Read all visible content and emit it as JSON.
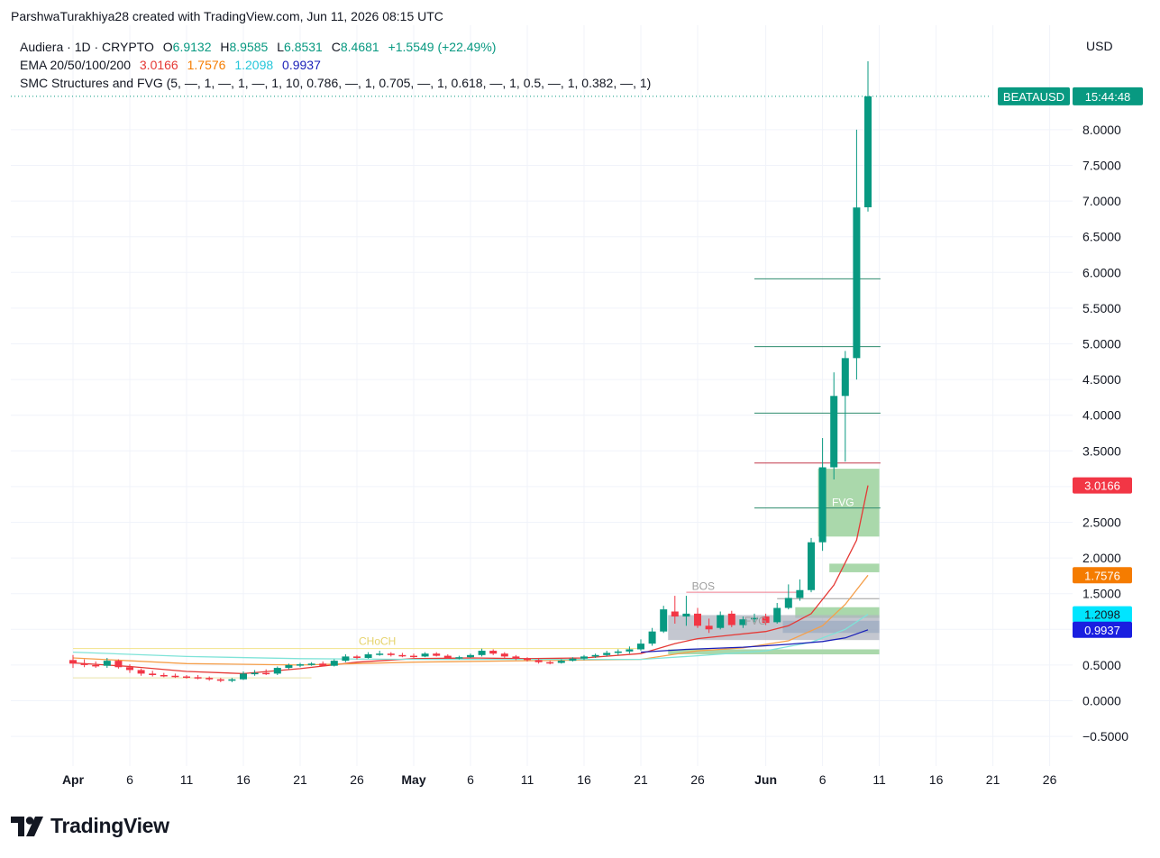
{
  "header": {
    "credit": "ParshwaTurakhiya28 created with TradingView.com, Jun 11, 2026 08:15 UTC",
    "currency": "USD"
  },
  "legend": {
    "symbol_line": "Audiera · 1D · CRYPTO",
    "o_label": "O",
    "o_value": "6.9132",
    "h_label": "H",
    "h_value": "8.9585",
    "l_label": "L",
    "l_value": "6.8531",
    "c_label": "C",
    "c_value": "8.4681",
    "change": "+1.5549 (+22.49%)",
    "ema_label": "EMA 20/50/100/200",
    "ema20": "3.0166",
    "ema50": "1.7576",
    "ema100": "1.2098",
    "ema200": "0.9937",
    "smc_label": "SMC Structures and FVG (5, —, 1, —, 1, —, 1, 10, 0.786, —, 1, 0.705, —, 1, 0.618, —, 1, 0.5, —, 1, 0.382, —, 1)"
  },
  "logo": {
    "text": "TradingView"
  },
  "colors": {
    "up": "#089981",
    "down": "#f23645",
    "ema20": "#e53935",
    "ema50": "#f59f4a",
    "ema100": "#7fe3d8",
    "ema200": "#1a1fb8",
    "fvg": "#a5d6a7",
    "grid": "#f0f3fa"
  },
  "chart_data": {
    "type": "candlestick",
    "symbol": "BEATAUSD",
    "countdown": "15:44:48",
    "y_ticks": [
      "8.0000",
      "7.5000",
      "7.0000",
      "6.5000",
      "6.0000",
      "5.5000",
      "5.0000",
      "4.5000",
      "4.0000",
      "3.5000",
      "3.0000",
      "2.5000",
      "2.0000",
      "1.5000",
      "1.0000",
      "0.5000",
      "0.0000",
      "−0.5000"
    ],
    "y_values": [
      8,
      7.5,
      7,
      6.5,
      6,
      5.5,
      5,
      4.5,
      4,
      3.5,
      3,
      2.5,
      2,
      1.5,
      1,
      0.5,
      0,
      -0.5
    ],
    "ylim": [
      -0.85,
      9.2
    ],
    "x_ticks": [
      {
        "label": "Apr",
        "day": 1,
        "bold": true
      },
      {
        "label": "6",
        "day": 6
      },
      {
        "label": "11",
        "day": 11
      },
      {
        "label": "16",
        "day": 16
      },
      {
        "label": "21",
        "day": 21
      },
      {
        "label": "26",
        "day": 26
      },
      {
        "label": "May",
        "day": 31,
        "bold": true
      },
      {
        "label": "6",
        "day": 36
      },
      {
        "label": "11",
        "day": 41
      },
      {
        "label": "16",
        "day": 46
      },
      {
        "label": "21",
        "day": 51
      },
      {
        "label": "26",
        "day": 56
      },
      {
        "label": "Jun",
        "day": 62,
        "bold": true
      },
      {
        "label": "6",
        "day": 67
      },
      {
        "label": "11",
        "day": 72
      },
      {
        "label": "16",
        "day": 77
      },
      {
        "label": "21",
        "day": 82
      },
      {
        "label": "26",
        "day": 87
      }
    ],
    "price_tags": [
      {
        "label": "3.0166",
        "value": 3.0166,
        "color": "#f23645"
      },
      {
        "label": "1.7576",
        "value": 1.7576,
        "color": "#f57c00"
      },
      {
        "label": "1.2098",
        "value": 1.2098,
        "color": "#00e5ff",
        "text_color": "#131722"
      },
      {
        "label": "0.9937",
        "value": 0.9937,
        "color": "#1a1fe0"
      }
    ],
    "current_price": 8.4681,
    "annotations": [
      {
        "text": "BOS",
        "x": 56.5,
        "y": 1.55,
        "color": "#9e9e9e"
      },
      {
        "text": "FVG",
        "x": 68.8,
        "y": 2.73,
        "color": "#ffffff"
      },
      {
        "text": "FVG",
        "x": 61.1,
        "y": 1.07,
        "color": "#9e9e9e"
      },
      {
        "text": "CHoCH",
        "x": 27.8,
        "y": 0.78,
        "color": "#e6d36b"
      }
    ],
    "candles": [
      {
        "d": 1,
        "o": 0.57,
        "h": 0.64,
        "l": 0.46,
        "c": 0.52
      },
      {
        "d": 2,
        "o": 0.52,
        "h": 0.58,
        "l": 0.47,
        "c": 0.5
      },
      {
        "d": 3,
        "o": 0.5,
        "h": 0.55,
        "l": 0.46,
        "c": 0.49
      },
      {
        "d": 4,
        "o": 0.49,
        "h": 0.6,
        "l": 0.46,
        "c": 0.56
      },
      {
        "d": 5,
        "o": 0.56,
        "h": 0.58,
        "l": 0.45,
        "c": 0.47
      },
      {
        "d": 6,
        "o": 0.47,
        "h": 0.51,
        "l": 0.39,
        "c": 0.43
      },
      {
        "d": 7,
        "o": 0.43,
        "h": 0.45,
        "l": 0.35,
        "c": 0.38
      },
      {
        "d": 8,
        "o": 0.38,
        "h": 0.42,
        "l": 0.34,
        "c": 0.36
      },
      {
        "d": 9,
        "o": 0.36,
        "h": 0.39,
        "l": 0.33,
        "c": 0.35
      },
      {
        "d": 10,
        "o": 0.35,
        "h": 0.38,
        "l": 0.32,
        "c": 0.34
      },
      {
        "d": 11,
        "o": 0.34,
        "h": 0.36,
        "l": 0.31,
        "c": 0.33
      },
      {
        "d": 12,
        "o": 0.33,
        "h": 0.36,
        "l": 0.3,
        "c": 0.32
      },
      {
        "d": 13,
        "o": 0.32,
        "h": 0.34,
        "l": 0.28,
        "c": 0.3
      },
      {
        "d": 14,
        "o": 0.3,
        "h": 0.32,
        "l": 0.26,
        "c": 0.28
      },
      {
        "d": 15,
        "o": 0.28,
        "h": 0.32,
        "l": 0.26,
        "c": 0.3
      },
      {
        "d": 16,
        "o": 0.3,
        "h": 0.41,
        "l": 0.29,
        "c": 0.38
      },
      {
        "d": 17,
        "o": 0.38,
        "h": 0.43,
        "l": 0.35,
        "c": 0.39
      },
      {
        "d": 18,
        "o": 0.39,
        "h": 0.44,
        "l": 0.36,
        "c": 0.38
      },
      {
        "d": 19,
        "o": 0.38,
        "h": 0.48,
        "l": 0.36,
        "c": 0.46
      },
      {
        "d": 20,
        "o": 0.46,
        "h": 0.52,
        "l": 0.44,
        "c": 0.5
      },
      {
        "d": 21,
        "o": 0.5,
        "h": 0.53,
        "l": 0.47,
        "c": 0.51
      },
      {
        "d": 22,
        "o": 0.51,
        "h": 0.54,
        "l": 0.49,
        "c": 0.52
      },
      {
        "d": 23,
        "o": 0.52,
        "h": 0.55,
        "l": 0.48,
        "c": 0.49
      },
      {
        "d": 24,
        "o": 0.49,
        "h": 0.58,
        "l": 0.48,
        "c": 0.56
      },
      {
        "d": 25,
        "o": 0.56,
        "h": 0.65,
        "l": 0.54,
        "c": 0.62
      },
      {
        "d": 26,
        "o": 0.62,
        "h": 0.64,
        "l": 0.58,
        "c": 0.6
      },
      {
        "d": 27,
        "o": 0.6,
        "h": 0.68,
        "l": 0.59,
        "c": 0.65
      },
      {
        "d": 28,
        "o": 0.65,
        "h": 0.7,
        "l": 0.63,
        "c": 0.66
      },
      {
        "d": 29,
        "o": 0.66,
        "h": 0.68,
        "l": 0.62,
        "c": 0.64
      },
      {
        "d": 30,
        "o": 0.64,
        "h": 0.67,
        "l": 0.61,
        "c": 0.63
      },
      {
        "d": 31,
        "o": 0.63,
        "h": 0.66,
        "l": 0.6,
        "c": 0.62
      },
      {
        "d": 32,
        "o": 0.62,
        "h": 0.68,
        "l": 0.61,
        "c": 0.66
      },
      {
        "d": 33,
        "o": 0.66,
        "h": 0.68,
        "l": 0.62,
        "c": 0.63
      },
      {
        "d": 34,
        "o": 0.63,
        "h": 0.65,
        "l": 0.59,
        "c": 0.6
      },
      {
        "d": 35,
        "o": 0.6,
        "h": 0.63,
        "l": 0.58,
        "c": 0.61
      },
      {
        "d": 36,
        "o": 0.61,
        "h": 0.66,
        "l": 0.6,
        "c": 0.64
      },
      {
        "d": 37,
        "o": 0.64,
        "h": 0.73,
        "l": 0.62,
        "c": 0.7
      },
      {
        "d": 38,
        "o": 0.7,
        "h": 0.72,
        "l": 0.64,
        "c": 0.66
      },
      {
        "d": 39,
        "o": 0.66,
        "h": 0.68,
        "l": 0.6,
        "c": 0.62
      },
      {
        "d": 40,
        "o": 0.62,
        "h": 0.64,
        "l": 0.57,
        "c": 0.59
      },
      {
        "d": 41,
        "o": 0.59,
        "h": 0.61,
        "l": 0.55,
        "c": 0.57
      },
      {
        "d": 42,
        "o": 0.57,
        "h": 0.6,
        "l": 0.52,
        "c": 0.54
      },
      {
        "d": 43,
        "o": 0.54,
        "h": 0.56,
        "l": 0.51,
        "c": 0.53
      },
      {
        "d": 44,
        "o": 0.53,
        "h": 0.58,
        "l": 0.52,
        "c": 0.56
      },
      {
        "d": 45,
        "o": 0.56,
        "h": 0.61,
        "l": 0.55,
        "c": 0.59
      },
      {
        "d": 46,
        "o": 0.59,
        "h": 0.64,
        "l": 0.57,
        "c": 0.62
      },
      {
        "d": 47,
        "o": 0.62,
        "h": 0.66,
        "l": 0.6,
        "c": 0.64
      },
      {
        "d": 48,
        "o": 0.64,
        "h": 0.7,
        "l": 0.62,
        "c": 0.67
      },
      {
        "d": 49,
        "o": 0.67,
        "h": 0.72,
        "l": 0.64,
        "c": 0.69
      },
      {
        "d": 50,
        "o": 0.69,
        "h": 0.76,
        "l": 0.66,
        "c": 0.72
      },
      {
        "d": 51,
        "o": 0.72,
        "h": 0.86,
        "l": 0.7,
        "c": 0.8
      },
      {
        "d": 52,
        "o": 0.8,
        "h": 1.02,
        "l": 0.77,
        "c": 0.97
      },
      {
        "d": 53,
        "o": 0.97,
        "h": 1.33,
        "l": 0.95,
        "c": 1.28
      },
      {
        "d": 54,
        "o": 1.25,
        "h": 1.47,
        "l": 1.08,
        "c": 1.18
      },
      {
        "d": 55,
        "o": 1.18,
        "h": 1.47,
        "l": 1.05,
        "c": 1.22
      },
      {
        "d": 56,
        "o": 1.22,
        "h": 1.3,
        "l": 1.02,
        "c": 1.05
      },
      {
        "d": 57,
        "o": 1.05,
        "h": 1.15,
        "l": 0.95,
        "c": 1.0
      },
      {
        "d": 58,
        "o": 1.02,
        "h": 1.25,
        "l": 1.0,
        "c": 1.2
      },
      {
        "d": 59,
        "o": 1.22,
        "h": 1.26,
        "l": 1.03,
        "c": 1.06
      },
      {
        "d": 60,
        "o": 1.06,
        "h": 1.18,
        "l": 1.02,
        "c": 1.14
      },
      {
        "d": 61,
        "o": 1.14,
        "h": 1.22,
        "l": 1.1,
        "c": 1.16
      },
      {
        "d": 62,
        "o": 1.18,
        "h": 1.22,
        "l": 1.06,
        "c": 1.09
      },
      {
        "d": 63,
        "o": 1.1,
        "h": 1.37,
        "l": 1.08,
        "c": 1.3
      },
      {
        "d": 64,
        "o": 1.3,
        "h": 1.63,
        "l": 1.28,
        "c": 1.44
      },
      {
        "d": 65,
        "o": 1.44,
        "h": 1.7,
        "l": 1.4,
        "c": 1.55
      },
      {
        "d": 66,
        "o": 1.55,
        "h": 2.28,
        "l": 1.52,
        "c": 2.22
      },
      {
        "d": 67,
        "o": 2.22,
        "h": 3.68,
        "l": 2.1,
        "c": 3.27
      },
      {
        "d": 68,
        "o": 3.27,
        "h": 4.6,
        "l": 3.1,
        "c": 4.27
      },
      {
        "d": 69,
        "o": 4.27,
        "h": 4.9,
        "l": 3.35,
        "c": 4.8
      },
      {
        "d": 70,
        "o": 4.8,
        "h": 8.0,
        "l": 4.5,
        "c": 6.91
      },
      {
        "d": 71,
        "o": 6.9132,
        "h": 8.9585,
        "l": 6.8531,
        "c": 8.4681
      }
    ],
    "ema": [
      {
        "name": "EMA 20",
        "color": "#e53935",
        "points": [
          [
            1,
            0.53
          ],
          [
            6,
            0.48
          ],
          [
            11,
            0.41
          ],
          [
            16,
            0.38
          ],
          [
            21,
            0.45
          ],
          [
            26,
            0.54
          ],
          [
            31,
            0.59
          ],
          [
            36,
            0.6
          ],
          [
            41,
            0.59
          ],
          [
            46,
            0.6
          ],
          [
            51,
            0.66
          ],
          [
            54,
            0.8
          ],
          [
            56,
            0.87
          ],
          [
            59,
            0.92
          ],
          [
            62,
            0.97
          ],
          [
            64,
            1.05
          ],
          [
            66,
            1.22
          ],
          [
            68,
            1.62
          ],
          [
            70,
            2.25
          ],
          [
            71,
            3.0166
          ]
        ]
      },
      {
        "name": "EMA 50",
        "color": "#f59f4a",
        "points": [
          [
            1,
            0.6
          ],
          [
            11,
            0.52
          ],
          [
            21,
            0.5
          ],
          [
            31,
            0.54
          ],
          [
            41,
            0.56
          ],
          [
            51,
            0.58
          ],
          [
            56,
            0.7
          ],
          [
            60,
            0.74
          ],
          [
            64,
            0.84
          ],
          [
            67,
            1.05
          ],
          [
            69,
            1.35
          ],
          [
            71,
            1.7576
          ]
        ]
      },
      {
        "name": "EMA 100",
        "color": "#7fe3d8",
        "points": [
          [
            1,
            0.68
          ],
          [
            11,
            0.62
          ],
          [
            21,
            0.59
          ],
          [
            31,
            0.58
          ],
          [
            41,
            0.58
          ],
          [
            51,
            0.58
          ],
          [
            56,
            0.63
          ],
          [
            62,
            0.7
          ],
          [
            66,
            0.82
          ],
          [
            69,
            1.0
          ],
          [
            71,
            1.2098
          ]
        ]
      },
      {
        "name": "EMA 200",
        "color": "#1a1fb8",
        "points": [
          [
            51,
            0.68
          ],
          [
            55,
            0.72
          ],
          [
            60,
            0.75
          ],
          [
            64,
            0.79
          ],
          [
            67,
            0.83
          ],
          [
            69,
            0.88
          ],
          [
            71,
            0.9937
          ]
        ]
      }
    ]
  }
}
